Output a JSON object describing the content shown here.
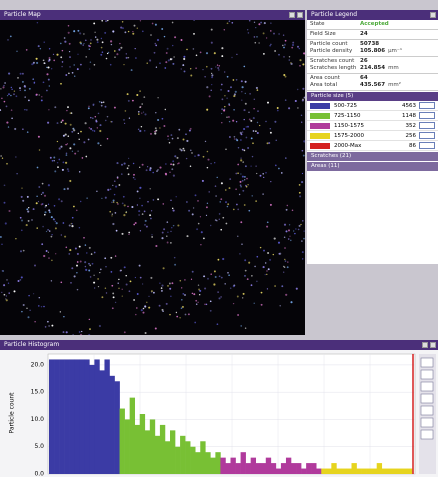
{
  "window": {
    "map": {
      "title": "Particle Map"
    },
    "legend": {
      "title": "Particle Legend",
      "stats": [
        [
          {
            "label": "State",
            "value": "Accepted"
          }
        ],
        [
          {
            "label": "Field Size",
            "value": "24"
          }
        ],
        [
          {
            "label": "Particle count",
            "value": "50738"
          },
          {
            "label": "Particle density",
            "value": "105.806",
            "unit": "µm⁻¹"
          }
        ],
        [
          {
            "label": "Scratches count",
            "value": "26"
          },
          {
            "label": "Scratches length",
            "value": "214.854",
            "unit": "mm"
          }
        ],
        [
          {
            "label": "Area count",
            "value": "64"
          },
          {
            "label": "Area total",
            "value": "435.567",
            "unit": "mm²"
          }
        ]
      ],
      "size_header": "Particle size (5)",
      "size_rows": [
        {
          "range": "500-725",
          "count": 4563,
          "color": "#3b3ba5"
        },
        {
          "range": "725-1150",
          "count": 1148,
          "color": "#78c034"
        },
        {
          "range": "1150-1575",
          "count": 352,
          "color": "#b03a9c"
        },
        {
          "range": "1575-2000",
          "count": 256,
          "color": "#e6d41e"
        },
        {
          "range": "2000-Max",
          "count": 86,
          "color": "#d42020"
        }
      ],
      "sections": [
        "Scratches (21)",
        "Areas (11)"
      ]
    }
  },
  "chart_data": {
    "type": "bar",
    "title": "Particle Histogram",
    "ylabel": "Particle count",
    "ylim": [
      0,
      22
    ],
    "yticks": [
      {
        "value": 0,
        "label": "0.0"
      },
      {
        "value": 5,
        "label": "5.0"
      },
      {
        "value": 10,
        "label": "10.0"
      },
      {
        "value": 15,
        "label": "15.0"
      },
      {
        "value": 20,
        "label": "20.0"
      }
    ],
    "grid": true,
    "series": [
      {
        "color": "#3b3ba5",
        "values": [
          21,
          21,
          21,
          21,
          21,
          21,
          21,
          21,
          20,
          21,
          19,
          21,
          18,
          17
        ]
      },
      {
        "color": "#78c034",
        "values": [
          12,
          10,
          14,
          9,
          11,
          8,
          10,
          7,
          9,
          6,
          8,
          5,
          7,
          6,
          5,
          4,
          6,
          4,
          3,
          4
        ]
      },
      {
        "color": "#b03a9c",
        "values": [
          3,
          2,
          3,
          2,
          4,
          2,
          3,
          2,
          2,
          3,
          2,
          1,
          2,
          3,
          2,
          2,
          1,
          2,
          2,
          1
        ]
      },
      {
        "color": "#e6d41e",
        "values": [
          1,
          1,
          2,
          1,
          1,
          1,
          2,
          1,
          1,
          1,
          1,
          2,
          1,
          1,
          1,
          1,
          1,
          1
        ]
      }
    ]
  }
}
